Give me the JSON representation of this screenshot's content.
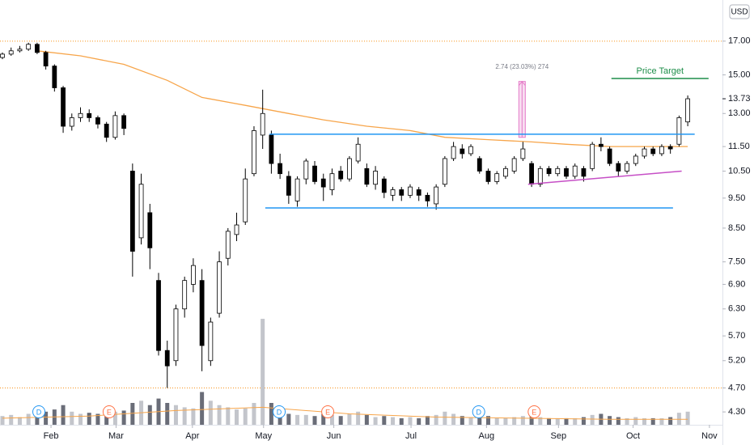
{
  "chart_data": {
    "type": "candlestick",
    "currency": "USD",
    "log_scale": true,
    "ylim": [
      4.1,
      19.8
    ],
    "yticks": [
      {
        "value": 17,
        "label": "17.00"
      },
      {
        "value": 15,
        "label": "15.00"
      },
      {
        "value": 13,
        "label": "13.00"
      },
      {
        "value": 11.5,
        "label": "11.50"
      },
      {
        "value": 10.5,
        "label": "10.50"
      },
      {
        "value": 9.5,
        "label": "9.50"
      },
      {
        "value": 8.5,
        "label": "8.50"
      },
      {
        "value": 7.5,
        "label": "7.50"
      },
      {
        "value": 6.9,
        "label": "6.90"
      },
      {
        "value": 6.3,
        "label": "6.30"
      },
      {
        "value": 5.7,
        "label": "5.70"
      },
      {
        "value": 5.2,
        "label": "5.20"
      },
      {
        "value": 4.7,
        "label": "4.70"
      },
      {
        "value": 4.3,
        "label": "4.30"
      }
    ],
    "last_price": {
      "value": 13.73,
      "label": "13.73"
    },
    "xlim": [
      -0.28,
      83.0
    ],
    "xticks": [
      {
        "value": 5.6,
        "label": "Feb"
      },
      {
        "value": 13.1,
        "label": "Mar"
      },
      {
        "value": 21.9,
        "label": "Apr"
      },
      {
        "value": 30.1,
        "label": "May"
      },
      {
        "value": 38.2,
        "label": "Jun"
      },
      {
        "value": 47.1,
        "label": "Jul"
      },
      {
        "value": 55.8,
        "label": "Aug"
      },
      {
        "value": 64.1,
        "label": "Sep"
      },
      {
        "value": 72.7,
        "label": "Oct"
      },
      {
        "value": 81.5,
        "label": "Nov"
      }
    ],
    "up_color": "#ffffff",
    "down_color": "#000000",
    "candles": [
      [
        16.0,
        16.3,
        15.9,
        16.2
      ],
      [
        16.2,
        16.6,
        16.1,
        16.4
      ],
      [
        16.4,
        16.7,
        16.3,
        16.5
      ],
      [
        16.5,
        16.9,
        16.4,
        16.8
      ],
      [
        16.8,
        16.9,
        16.2,
        16.3
      ],
      [
        16.3,
        16.4,
        15.3,
        15.5
      ],
      [
        15.5,
        15.6,
        14.1,
        14.3
      ],
      [
        14.3,
        14.4,
        12.1,
        12.4
      ],
      [
        12.4,
        13.0,
        12.2,
        12.8
      ],
      [
        12.8,
        13.3,
        12.6,
        13.0
      ],
      [
        13.0,
        13.2,
        12.6,
        12.8
      ],
      [
        12.8,
        12.9,
        12.3,
        12.5
      ],
      [
        12.5,
        12.6,
        11.7,
        11.9
      ],
      [
        11.9,
        13.1,
        11.8,
        12.9
      ],
      [
        12.9,
        13.0,
        12.0,
        12.3
      ],
      [
        10.5,
        10.8,
        7.1,
        7.8
      ],
      [
        8.2,
        10.4,
        8.0,
        10.0
      ],
      [
        9.0,
        9.3,
        7.3,
        7.9
      ],
      [
        7.0,
        7.2,
        5.3,
        5.4
      ],
      [
        5.4,
        5.6,
        4.7,
        5.1
      ],
      [
        5.2,
        6.4,
        5.1,
        6.3
      ],
      [
        6.3,
        7.1,
        6.1,
        7.0
      ],
      [
        6.9,
        7.6,
        6.7,
        7.4
      ],
      [
        7.0,
        7.3,
        5.0,
        5.5
      ],
      [
        5.2,
        6.1,
        5.1,
        6.0
      ],
      [
        6.2,
        7.8,
        6.1,
        7.5
      ],
      [
        7.6,
        8.5,
        7.4,
        8.4
      ],
      [
        8.3,
        9.0,
        8.1,
        8.6
      ],
      [
        8.7,
        10.6,
        8.6,
        10.2
      ],
      [
        10.4,
        12.4,
        10.3,
        12.2
      ],
      [
        12.0,
        14.2,
        11.4,
        13.0
      ],
      [
        12.0,
        12.2,
        10.4,
        10.8
      ],
      [
        10.8,
        11.2,
        10.2,
        10.4
      ],
      [
        10.3,
        10.5,
        9.3,
        9.6
      ],
      [
        9.4,
        10.3,
        9.2,
        10.2
      ],
      [
        10.2,
        11.0,
        10.0,
        10.9
      ],
      [
        10.7,
        10.9,
        10.0,
        10.1
      ],
      [
        10.2,
        10.4,
        9.4,
        9.9
      ],
      [
        9.8,
        10.6,
        9.6,
        10.4
      ],
      [
        10.5,
        10.7,
        10.1,
        10.2
      ],
      [
        10.2,
        11.1,
        10.1,
        11.0
      ],
      [
        10.9,
        11.9,
        10.8,
        11.6
      ],
      [
        10.6,
        10.8,
        9.9,
        10.0
      ],
      [
        10.0,
        10.7,
        9.8,
        10.5
      ],
      [
        10.2,
        10.3,
        9.5,
        9.7
      ],
      [
        9.6,
        9.9,
        9.4,
        9.8
      ],
      [
        9.8,
        9.9,
        9.4,
        9.6
      ],
      [
        9.6,
        10.0,
        9.5,
        9.9
      ],
      [
        9.8,
        9.9,
        9.4,
        9.6
      ],
      [
        9.6,
        9.7,
        9.2,
        9.4
      ],
      [
        9.3,
        10.0,
        9.1,
        9.9
      ],
      [
        10.0,
        11.1,
        9.9,
        11.0
      ],
      [
        11.0,
        11.7,
        10.9,
        11.5
      ],
      [
        11.4,
        11.6,
        11.0,
        11.2
      ],
      [
        11.2,
        11.6,
        11.1,
        11.5
      ],
      [
        11.0,
        11.1,
        10.4,
        10.5
      ],
      [
        10.5,
        10.6,
        10.0,
        10.1
      ],
      [
        10.1,
        10.5,
        10.0,
        10.4
      ],
      [
        10.3,
        10.7,
        10.2,
        10.6
      ],
      [
        10.5,
        11.1,
        10.4,
        11.0
      ],
      [
        11.0,
        11.7,
        10.9,
        11.4
      ],
      [
        10.8,
        10.9,
        9.9,
        10.0
      ],
      [
        10.0,
        10.7,
        9.9,
        10.6
      ],
      [
        10.6,
        10.7,
        10.3,
        10.4
      ],
      [
        10.4,
        10.7,
        10.3,
        10.6
      ],
      [
        10.6,
        10.7,
        10.2,
        10.3
      ],
      [
        10.3,
        10.8,
        10.2,
        10.7
      ],
      [
        10.6,
        10.7,
        10.1,
        10.3
      ],
      [
        10.6,
        11.7,
        10.5,
        11.6
      ],
      [
        11.6,
        11.9,
        11.3,
        11.5
      ],
      [
        11.4,
        11.5,
        10.7,
        10.8
      ],
      [
        10.8,
        10.9,
        10.3,
        10.5
      ],
      [
        10.5,
        10.9,
        10.4,
        10.8
      ],
      [
        10.8,
        11.2,
        10.7,
        11.1
      ],
      [
        11.1,
        11.5,
        11.0,
        11.4
      ],
      [
        11.4,
        11.5,
        11.1,
        11.2
      ],
      [
        11.2,
        11.6,
        11.1,
        11.5
      ],
      [
        11.5,
        11.6,
        11.2,
        11.4
      ],
      [
        11.6,
        12.9,
        11.5,
        12.8
      ],
      [
        12.6,
        13.9,
        12.4,
        13.73
      ]
    ],
    "moving_average": {
      "color": "#f7a54a",
      "x": [
        4,
        9,
        14,
        19,
        23,
        28,
        33,
        37,
        42,
        47,
        51,
        56,
        61,
        65,
        70,
        75,
        79
      ],
      "values": [
        16.4,
        16.1,
        15.6,
        14.7,
        13.8,
        13.4,
        13.0,
        12.7,
        12.4,
        12.2,
        11.9,
        11.8,
        11.7,
        11.6,
        11.5,
        11.5,
        11.5
      ]
    },
    "volume": {
      "vlim": [
        0,
        100
      ],
      "up_color": "#c3c5cb",
      "down_color": "#6a6d78",
      "values": [
        8,
        9,
        7,
        10,
        9,
        12,
        14,
        18,
        12,
        10,
        11,
        10,
        14,
        12,
        13,
        20,
        22,
        18,
        24,
        20,
        18,
        16,
        15,
        30,
        22,
        18,
        16,
        14,
        15,
        20,
        97,
        20,
        12,
        10,
        9,
        9,
        8,
        10,
        9,
        8,
        10,
        12,
        9,
        7,
        8,
        7,
        6,
        7,
        6,
        8,
        9,
        12,
        10,
        8,
        7,
        9,
        8,
        6,
        6,
        7,
        8,
        10,
        7,
        6,
        6,
        6,
        6,
        7,
        9,
        10,
        8,
        7,
        6,
        7,
        6,
        6,
        6,
        7,
        11,
        12
      ],
      "average": {
        "color": "#f7a54a",
        "x": [
          0,
          10,
          20,
          30,
          40,
          50,
          60,
          70,
          79
        ],
        "values": [
          6,
          8,
          13,
          16,
          10,
          7,
          6,
          5,
          5
        ]
      }
    },
    "levels": [
      {
        "value": 17.0,
        "color": "#f7931a"
      },
      {
        "value": 4.7,
        "color": "#f7931a"
      }
    ],
    "drawings": [
      {
        "from": 30.8,
        "to": 79.8,
        "start": 12.04,
        "end": 12.04,
        "color": "#2196f3"
      },
      {
        "from": 30.3,
        "to": 77.3,
        "start": 9.16,
        "end": 9.16,
        "color": "#2196f3"
      },
      {
        "from": 60.6,
        "to": 78.3,
        "start": 10.0,
        "end": 10.5,
        "color": "#c64fc6"
      },
      {
        "from": 70.2,
        "to": 81.4,
        "start": 14.8,
        "end": 14.8,
        "color": "#1e8e4a",
        "label": "Price Target"
      }
    ],
    "measure": {
      "x": 59.9,
      "from": 11.9,
      "to": 14.64,
      "label": "2.74 (23.03%) 274",
      "color": "#e57ac8"
    },
    "events": [
      {
        "label": "D",
        "x": 4.2,
        "color": "#2196f3"
      },
      {
        "label": "E",
        "x": 12.3,
        "color": "#ff7043"
      },
      {
        "label": "D",
        "x": 31.9,
        "color": "#2196f3"
      },
      {
        "label": "E",
        "x": 37.5,
        "color": "#ff7043"
      },
      {
        "label": "D",
        "x": 54.9,
        "color": "#2196f3"
      },
      {
        "label": "E",
        "x": 61.3,
        "color": "#ff7043"
      }
    ]
  }
}
